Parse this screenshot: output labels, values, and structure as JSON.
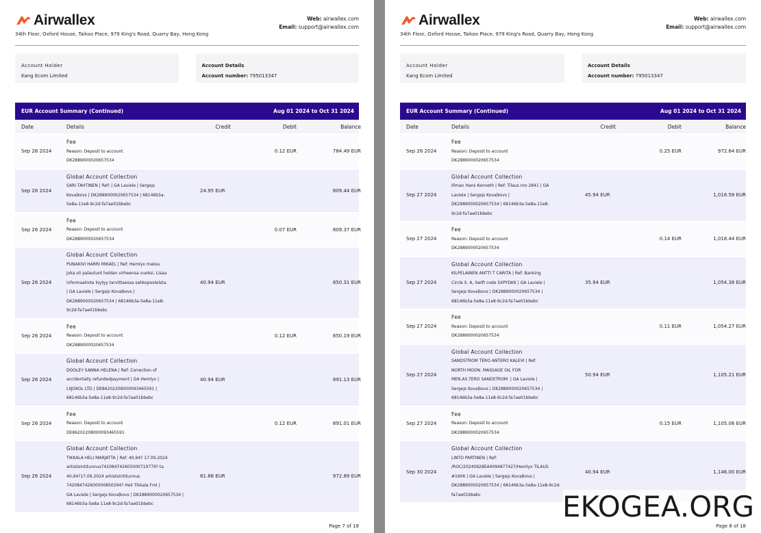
{
  "pages": [
    {
      "header": {
        "brand": "Airwallex",
        "address": "34th Floor, Oxford House, Taikoo Place, 979 King's Road, Quarry Bay, Hong Kong",
        "web_label": "Web:",
        "web": "airwallex.com",
        "email_label": "Email:",
        "email": "support@airwallex.com"
      },
      "account_holder": {
        "label": "Account Holder",
        "value": "Kang Ecom Limited"
      },
      "account_details": {
        "label": "Account Details",
        "number_label": "Account number:",
        "number": "795013347"
      },
      "table": {
        "title": "EUR Account Summary (Continued)",
        "period": "Aug 01 2024 to Oct 31 2024",
        "columns": [
          "Date",
          "Details",
          "Credit",
          "Debit",
          "Balance"
        ],
        "rows": [
          {
            "date": "Sep 26 2024",
            "title": "Fee",
            "lines": [
              "Reason: Deposit to account",
              "DK2889000020657534"
            ],
            "debit": "0.12 EUR",
            "balance": "784.49 EUR"
          },
          {
            "date": "Sep 26 2024",
            "title": "Global Account Collection",
            "lines": [
              "SARI TAHTINEN | Ref: | GA Laviele | Sergejs",
              "Kovaļkovs | DK2889000020657534 | 68146b3a-",
              "5e8a-11e8-9c2d-fa7ae01bbebc"
            ],
            "credit": "24.95 EUR",
            "balance": "809.44 EUR"
          },
          {
            "date": "Sep 26 2024",
            "title": "Fee",
            "lines": [
              "Reason: Deposit to account",
              "DK2889000020657534"
            ],
            "debit": "0.07 EUR",
            "balance": "809.37 EUR"
          },
          {
            "date": "Sep 26 2024",
            "title": "Global Account Collection",
            "lines": [
              "PUNAKIVI HARRI MIKAEL | Ref: Hemlyx maksu",
              "joka oli palautunt heldan virheensa vuoksi. Lisaa",
              "informaatiota loytyy tarvittaessa sahkopostelsta.",
              "| GA Laviele | Sergejs Kovaļkovs |",
              "DK2889000020657534 | 68146b3a-5e8a-11e8-",
              "9c2d-fa7ae01bbebc"
            ],
            "credit": "40.94 EUR",
            "balance": "850.31 EUR"
          },
          {
            "date": "Sep 26 2024",
            "title": "Fee",
            "lines": [
              "Reason: Deposit to account",
              "DK2889000020657534"
            ],
            "debit": "0.12 EUR",
            "balance": "850.19 EUR"
          },
          {
            "date": "Sep 26 2024",
            "title": "Global Account Collection",
            "lines": [
              "DOOLEY SANNA HELENA | Ref: Correction of",
              "accidentally refundedpayment | GA Hemlyx |",
              "LIIJDKOL LTD | DE86202208000093465591 |",
              "68146b3a-5e8a-11e8-9c2d-fa7ae01bbebc"
            ],
            "credit": "40.94 EUR",
            "balance": "891.13 EUR"
          },
          {
            "date": "Sep 26 2024",
            "title": "Fee",
            "lines": [
              "Reason: Deposit to account",
              "DE86202208000093465591"
            ],
            "debit": "0.12 EUR",
            "balance": "891.01 EUR"
          },
          {
            "date": "Sep 26 2024",
            "title": "Global Account Collection",
            "lines": [
              "TIKKALA HELI MARJATTA | Ref: 40,94? 17.09.2024",
              "arkistointitunnus742084742605000719779? ta",
              "40,94?17.09.2024 arkistointitunnus",
              "742084742600000850294? Heli Tikkala Fml |",
              "GA Laviele | Sergejs Kovaļkovs | DK2889000020657534 |",
              "68146b3a-5e8a-11e8-9c2d-fa7ae01bbebc"
            ],
            "credit": "81.88 EUR",
            "balance": "972.89 EUR"
          }
        ]
      },
      "footer": "Page 7 of 18"
    },
    {
      "header": {
        "brand": "Airwallex",
        "address": "34th Floor, Oxford House, Taikoo Place, 979 King's Road, Quarry Bay, Hong Kong",
        "web_label": "Web:",
        "web": "airwallex.com",
        "email_label": "Email:",
        "email": "support@airwallex.com"
      },
      "account_holder": {
        "label": "Account Holder",
        "value": "Kang Ecom Limited"
      },
      "account_details": {
        "label": "Account Details",
        "number_label": "Account number:",
        "number": "795013347"
      },
      "table": {
        "title": "EUR Account Summary (Continued)",
        "period": "Aug 01 2024 to Oct 31 2024",
        "columns": [
          "Date",
          "Details",
          "Credit",
          "Debit",
          "Balance"
        ],
        "rows": [
          {
            "date": "Sep 26 2024",
            "title": "Fee",
            "lines": [
              "Reason: Deposit to account",
              "DK2889000020657534"
            ],
            "debit": "0.25 EUR",
            "balance": "972.64 EUR"
          },
          {
            "date": "Sep 27 2024",
            "title": "Global Account Collection",
            "lines": [
              "Illman Hans Kenneth | Ref: Tilaus nro 2841 | GA",
              "Laviele | Sergejs Kovaļkovs |",
              "DK2889000020657534 | 68146b3a-5e8a-11e8-",
              "9c2d-fa7ae01bbebc"
            ],
            "credit": "45.94 EUR",
            "balance": "1,018.58 EUR"
          },
          {
            "date": "Sep 27 2024",
            "title": "Fee",
            "lines": [
              "Reason: Deposit to account",
              "DK2889000020657534"
            ],
            "debit": "0.14 EUR",
            "balance": "1,018.44 EUR"
          },
          {
            "date": "Sep 27 2024",
            "title": "Global Account Collection",
            "lines": [
              "KILPELAINEN ANTTI T CARITA | Ref: Banking",
              "Circle S. A, Swift code SXPYDKK | GA Laviele |",
              "Sergejs Kovaļkovs | DK2889000020657534 |",
              "68146b3a-5e8a-11e8-9c2d-fa7ae01bbebc"
            ],
            "credit": "35.94 EUR",
            "balance": "1,054.38 EUR"
          },
          {
            "date": "Sep 27 2024",
            "title": "Fee",
            "lines": [
              "Reason: Deposit to account",
              "DK2889000020657534"
            ],
            "debit": "0.11 EUR",
            "balance": "1,054.27 EUR"
          },
          {
            "date": "Sep 27 2024",
            "title": "Global Account Collection",
            "lines": [
              "SANDSTROM TERO ANTERO KALEVI | Ref:",
              "NORTH MOON. MASSAGE OIL FOR",
              "MEN.AS.TERO SANDSTROM. | GA Laviele |",
              "Sergejs Kovaļkovs | DK2889000020657534 |",
              "68146b3a-5e8a-11e8-9c2d-fa7ae01bbebc"
            ],
            "credit": "50.94 EUR",
            "balance": "1,105.21 EUR"
          },
          {
            "date": "Sep 27 2024",
            "title": "Fee",
            "lines": [
              "Reason: Deposit to account",
              "DK2889000020657534"
            ],
            "debit": "0.15 EUR",
            "balance": "1,105.06 EUR"
          },
          {
            "date": "Sep 30 2024",
            "title": "Global Account Collection",
            "lines": [
              "LINTO PARTINEN | Ref:",
              "/ROC/20240928EA4094877427/Hemlyx TILAUS",
              "#1606 | GA Laviele | Sergejs Kovaļkovs |",
              "DK2889000020657534 | 68146b3a-5e8a-11e8-9c2d-",
              "fa7ae01bbebc"
            ],
            "credit": "40.94 EUR",
            "balance": "1,146.00 EUR"
          }
        ]
      },
      "footer": "Page 8 of 18"
    }
  ],
  "watermark": "EKOGEA.ORG"
}
